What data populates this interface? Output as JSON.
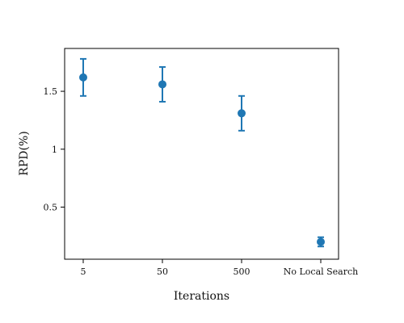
{
  "chart_data": {
    "type": "scatter",
    "title": "",
    "xlabel": "Iterations",
    "ylabel": "RPD(%)",
    "categories": [
      "5",
      "50",
      "500",
      "No Local Search"
    ],
    "series": [
      {
        "values": [
          1.62,
          1.56,
          1.31,
          0.2
        ],
        "error_lower": [
          1.46,
          1.41,
          1.16,
          0.16
        ],
        "error_upper": [
          1.78,
          1.71,
          1.46,
          0.24
        ]
      }
    ],
    "y_ticks": [
      {
        "value": 0.5,
        "label": "0.5"
      },
      {
        "value": 1.0,
        "label": "1"
      },
      {
        "value": 1.5,
        "label": "1.5"
      }
    ],
    "ylim": [
      0.05,
      1.87
    ],
    "grid": false,
    "legend": "none",
    "colors": {
      "marker": "#1f77b4",
      "axis": "#000000"
    }
  }
}
